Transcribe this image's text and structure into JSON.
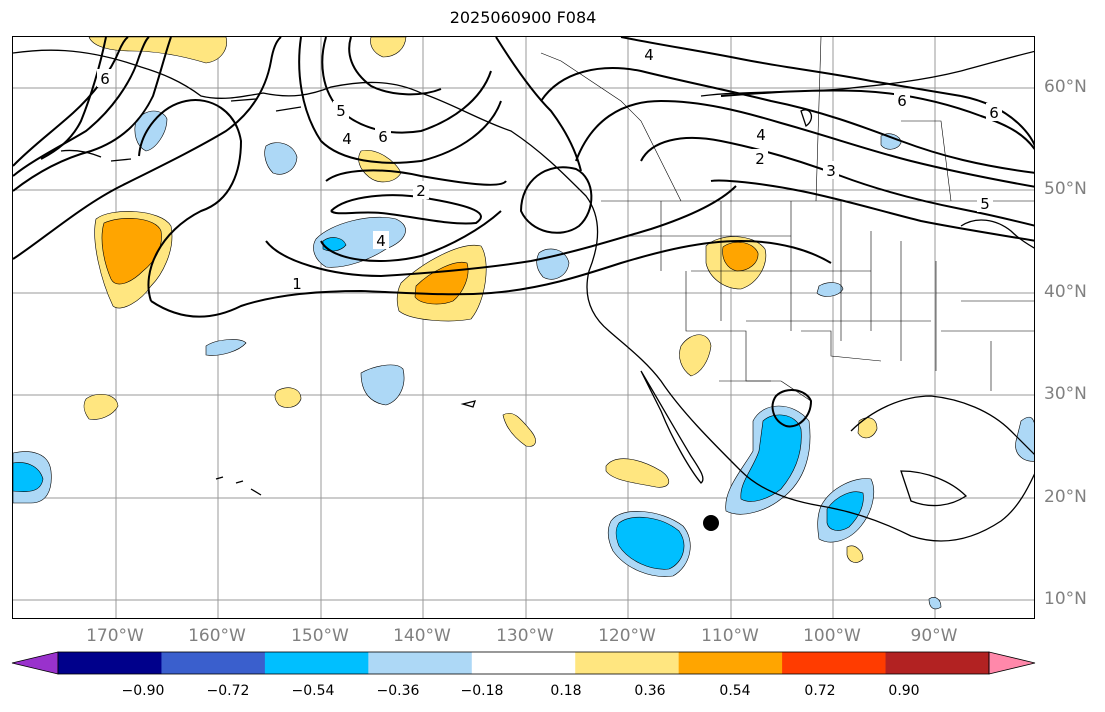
{
  "title": "2025060900 F084",
  "lon_labels": [
    "170°W",
    "160°W",
    "150°W",
    "140°W",
    "130°W",
    "120°W",
    "110°W",
    "100°W",
    "90°W"
  ],
  "lat_labels": [
    "60°N",
    "50°N",
    "40°N",
    "30°N",
    "20°N",
    "10°N"
  ],
  "contour_labels": [
    "1",
    "2",
    "2",
    "3",
    "4",
    "4",
    "4",
    "4",
    "5",
    "5",
    "6",
    "6",
    "6",
    "6"
  ],
  "colorbar": {
    "ticks": [
      "−0.90",
      "−0.72",
      "−0.54",
      "−0.36",
      "−0.18",
      "0.18",
      "0.36",
      "0.54",
      "0.72",
      "0.90"
    ],
    "colors": [
      "#9932cc",
      "#00008b",
      "#3a5fcd",
      "#00bfff",
      "#add8f6",
      "#ffffff",
      "#ffe680",
      "#ffa500",
      "#ff3c00",
      "#b22222",
      "#ff88aa"
    ]
  },
  "colors": {
    "pos_light": "#ffe680",
    "pos_mid": "#ffa500",
    "neg_light": "#add8f6",
    "neg_mid": "#00bfff",
    "grid": "#999999",
    "axis_label": "#808080"
  }
}
